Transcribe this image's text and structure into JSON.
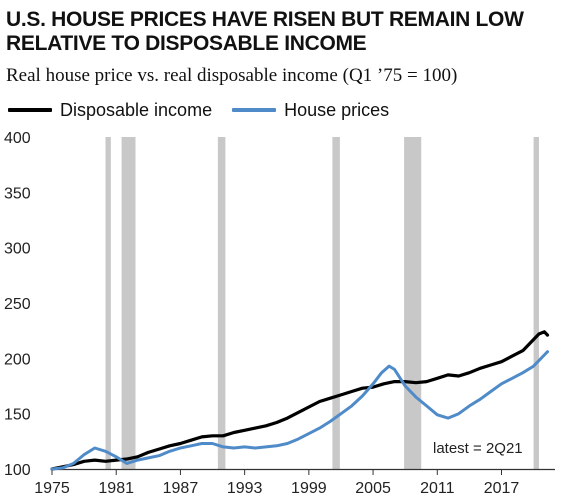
{
  "chart_data": {
    "type": "line",
    "title": "U.S. HOUSE PRICES HAVE RISEN BUT REMAIN LOW RELATIVE TO DISPOSABLE INCOME",
    "subtitle": "Real house price vs. real disposable income (Q1 ’75 = 100)",
    "xlabel": "",
    "ylabel": "",
    "xlim": [
      1975,
      2022
    ],
    "ylim": [
      100,
      400
    ],
    "x_ticks": [
      1975,
      1981,
      1987,
      1993,
      1999,
      2005,
      2011,
      2017
    ],
    "y_ticks": [
      100,
      150,
      200,
      250,
      300,
      350,
      400
    ],
    "grid": false,
    "legend_placement": "top-left",
    "annotation": "latest = 2Q21",
    "recessions": [
      [
        1980.0,
        1980.5
      ],
      [
        1981.5,
        1982.8
      ],
      [
        1990.5,
        1991.2
      ],
      [
        2001.2,
        2001.9
      ],
      [
        2007.9,
        2009.5
      ],
      [
        2020.0,
        2020.5
      ]
    ],
    "series": [
      {
        "name": "Disposable income",
        "color": "#000000",
        "x": [
          1975,
          1976,
          1977,
          1978,
          1979,
          1980,
          1981,
          1982,
          1983,
          1984,
          1985,
          1986,
          1987,
          1988,
          1989,
          1990,
          1991,
          1992,
          1993,
          1994,
          1995,
          1996,
          1997,
          1998,
          1999,
          2000,
          2001,
          2002,
          2003,
          2004,
          2005,
          2006,
          2007,
          2008,
          2009,
          2010,
          2011,
          2012,
          2013,
          2014,
          2015,
          2016,
          2017,
          2018,
          2019,
          2020,
          2020.5,
          2021,
          2021.3
        ],
        "values": [
          100,
          102,
          104,
          107,
          108,
          107,
          108,
          109,
          111,
          115,
          118,
          121,
          123,
          126,
          129,
          130,
          130,
          133,
          135,
          137,
          139,
          142,
          146,
          151,
          156,
          161,
          164,
          167,
          170,
          173,
          174,
          177,
          179,
          179,
          178,
          179,
          182,
          185,
          184,
          187,
          191,
          194,
          197,
          202,
          207,
          217,
          222,
          224,
          221
        ]
      },
      {
        "name": "House prices",
        "color": "#4f8bc9",
        "x": [
          1975,
          1976,
          1977,
          1978,
          1979,
          1980,
          1981,
          1982,
          1983,
          1984,
          1985,
          1986,
          1987,
          1988,
          1989,
          1990,
          1991,
          1992,
          1993,
          1994,
          1995,
          1996,
          1997,
          1998,
          1999,
          2000,
          2001,
          2002,
          2003,
          2004,
          2005,
          2005.8,
          2006.5,
          2007,
          2008,
          2009,
          2010,
          2011,
          2012,
          2013,
          2014,
          2015,
          2016,
          2017,
          2018,
          2019,
          2020,
          2021,
          2021.3
        ],
        "values": [
          100,
          101,
          105,
          113,
          119,
          116,
          111,
          105,
          108,
          110,
          112,
          116,
          119,
          121,
          123,
          123,
          120,
          119,
          120,
          119,
          120,
          121,
          123,
          127,
          132,
          137,
          143,
          150,
          157,
          166,
          177,
          187,
          193,
          190,
          175,
          165,
          157,
          149,
          146,
          150,
          157,
          163,
          170,
          177,
          182,
          187,
          193,
          203,
          206
        ]
      }
    ]
  }
}
